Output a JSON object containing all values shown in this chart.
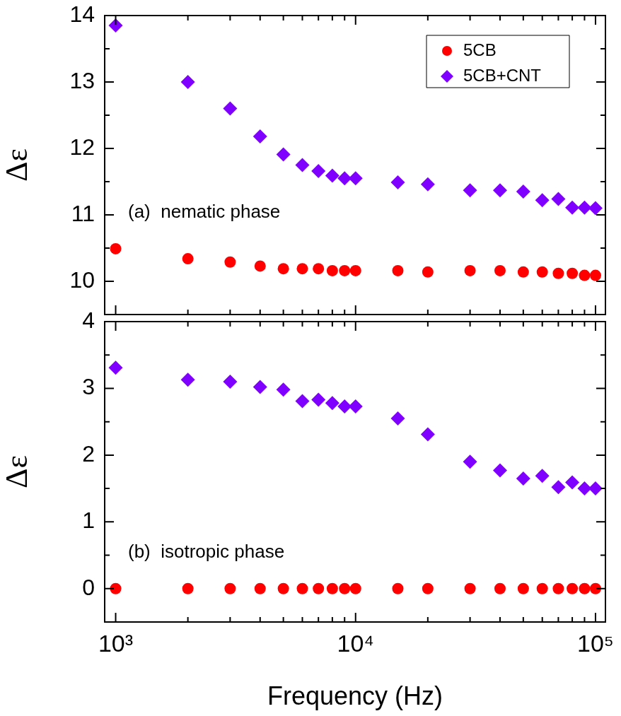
{
  "chart_data": [
    {
      "type": "scatter",
      "ylabel": "Δε",
      "annotations": [
        "(a)  nematic phase"
      ],
      "log": "x",
      "legend": "top right",
      "tick_labels": "y",
      "xlim": [
        900,
        110000
      ],
      "ylim": [
        9.5,
        14
      ],
      "xticks": [
        {
          "value": 1000,
          "label": null
        },
        {
          "value": 2000,
          "label": null
        },
        {
          "value": 3000,
          "label": null
        },
        {
          "value": 4000,
          "label": null
        },
        {
          "value": 5000,
          "label": null
        },
        {
          "value": 6000,
          "label": null
        },
        {
          "value": 7000,
          "label": null
        },
        {
          "value": 8000,
          "label": null
        },
        {
          "value": 9000,
          "label": null
        },
        {
          "value": 10000,
          "label": null
        },
        {
          "value": 20000,
          "label": null
        },
        {
          "value": 30000,
          "label": null
        },
        {
          "value": 40000,
          "label": null
        },
        {
          "value": 50000,
          "label": null
        },
        {
          "value": 60000,
          "label": null
        },
        {
          "value": 70000,
          "label": null
        },
        {
          "value": 80000,
          "label": null
        },
        {
          "value": 90000,
          "label": null
        },
        {
          "value": 100000,
          "label": null
        }
      ],
      "yticks": [
        10,
        {
          "value": 10.5,
          "label": null
        },
        11,
        {
          "value": 11.5,
          "label": null
        },
        12,
        {
          "value": 12.5,
          "label": null
        },
        13,
        {
          "value": 13.5,
          "label": null
        },
        14
      ],
      "x": [
        1000,
        2000,
        3000,
        4000,
        5000,
        6000,
        7000,
        8000,
        9000,
        10000,
        15000,
        20000,
        30000,
        40000,
        50000,
        60000,
        70000,
        80000,
        90000,
        100000
      ],
      "series": [
        {
          "name": "5CB",
          "color": "#ff0000",
          "marker": "circle",
          "values": [
            10.49,
            10.34,
            10.29,
            10.23,
            10.19,
            10.19,
            10.19,
            10.16,
            10.16,
            10.16,
            10.16,
            10.14,
            10.16,
            10.16,
            10.14,
            10.14,
            10.12,
            10.12,
            10.09,
            10.09
          ]
        },
        {
          "name": "5CB+CNT",
          "color": "#7f00ff",
          "marker": "diamond",
          "values": [
            13.85,
            13.0,
            12.6,
            12.18,
            11.91,
            11.75,
            11.66,
            11.59,
            11.55,
            11.55,
            11.49,
            11.46,
            11.37,
            11.37,
            11.35,
            11.22,
            11.24,
            11.11,
            11.11,
            11.1
          ]
        }
      ]
    },
    {
      "type": "scatter",
      "ylabel": "Δε",
      "xlabel": "Frequency (Hz)",
      "annotations": [
        "(b)  isotropic phase"
      ],
      "log": "x",
      "xlim": [
        900,
        110000
      ],
      "ylim": [
        -0.5,
        4
      ],
      "xticks": [
        {
          "value": 1000,
          "label": "10³"
        },
        {
          "value": 2000,
          "label": null
        },
        {
          "value": 3000,
          "label": null
        },
        {
          "value": 4000,
          "label": null
        },
        {
          "value": 5000,
          "label": null
        },
        {
          "value": 6000,
          "label": null
        },
        {
          "value": 7000,
          "label": null
        },
        {
          "value": 8000,
          "label": null
        },
        {
          "value": 9000,
          "label": null
        },
        {
          "value": 10000,
          "label": "10⁴"
        },
        {
          "value": 20000,
          "label": null
        },
        {
          "value": 30000,
          "label": null
        },
        {
          "value": 40000,
          "label": null
        },
        {
          "value": 50000,
          "label": null
        },
        {
          "value": 60000,
          "label": null
        },
        {
          "value": 70000,
          "label": null
        },
        {
          "value": 80000,
          "label": null
        },
        {
          "value": 90000,
          "label": null
        },
        {
          "value": 100000,
          "label": "10⁵"
        }
      ],
      "yticks": [
        0,
        {
          "value": 0.5,
          "label": null
        },
        1,
        {
          "value": 1.5,
          "label": null
        },
        2,
        {
          "value": 2.5,
          "label": null
        },
        3,
        {
          "value": 3.5,
          "label": null
        },
        4
      ],
      "x": [
        1000,
        2000,
        3000,
        4000,
        5000,
        6000,
        7000,
        8000,
        9000,
        10000,
        15000,
        20000,
        30000,
        40000,
        50000,
        60000,
        70000,
        80000,
        90000,
        100000
      ],
      "series": [
        {
          "color": "#ff0000",
          "marker": "circle",
          "values": [
            0,
            0,
            0,
            0,
            0,
            0,
            0,
            0,
            0,
            0,
            0,
            0,
            0,
            0,
            0,
            0,
            0,
            0,
            0,
            0
          ]
        },
        {
          "color": "#7f00ff",
          "marker": "diamond",
          "values": [
            3.31,
            3.13,
            3.1,
            3.02,
            2.98,
            2.81,
            2.83,
            2.78,
            2.73,
            2.73,
            2.55,
            2.31,
            1.9,
            1.77,
            1.65,
            1.69,
            1.52,
            1.59,
            1.5,
            1.5
          ]
        }
      ]
    }
  ]
}
